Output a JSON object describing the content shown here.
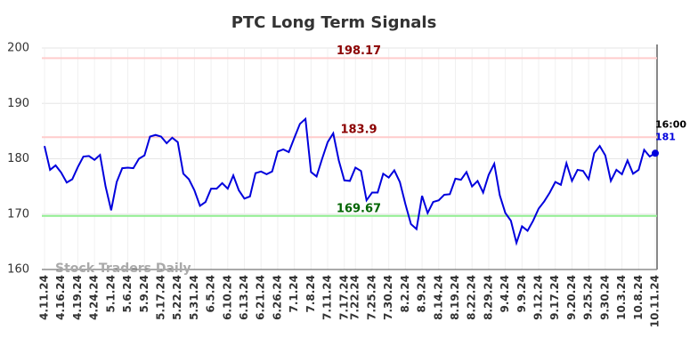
{
  "chart_data": {
    "type": "line",
    "title": "PTC Long Term Signals",
    "categories": [
      "4.11.24",
      null,
      null,
      "4.16.24",
      null,
      null,
      "4.19.24",
      null,
      null,
      "4.24.24",
      null,
      null,
      "5.1.24",
      null,
      null,
      "5.6.24",
      null,
      null,
      "5.9.24",
      null,
      null,
      "5.17.24",
      null,
      null,
      "5.22.24",
      null,
      null,
      "5.31.24",
      null,
      null,
      "6.5.24",
      null,
      null,
      "6.10.24",
      null,
      null,
      "6.13.24",
      null,
      null,
      "6.21.24",
      null,
      null,
      "6.26.24",
      null,
      null,
      "7.1.24",
      null,
      null,
      "7.8.24",
      null,
      null,
      "7.11.24",
      null,
      null,
      "7.17.24",
      null,
      "7.22.24",
      null,
      null,
      "7.25.24",
      null,
      null,
      "7.30.24",
      null,
      null,
      "8.2.24",
      null,
      null,
      "8.9.24",
      null,
      null,
      "8.14.24",
      null,
      null,
      "8.19.24",
      null,
      null,
      "8.22.24",
      null,
      null,
      "8.29.24",
      null,
      null,
      "9.4.24",
      null,
      null,
      "9.9.24",
      null,
      null,
      "9.12.24",
      null,
      null,
      "9.17.24",
      null,
      null,
      "9.20.24",
      null,
      null,
      "9.25.24",
      null,
      null,
      "9.30.24",
      null,
      null,
      "10.3.24",
      null,
      null,
      "10.8.24",
      null,
      null,
      "10.11.24"
    ],
    "series": [
      {
        "name": "PTC",
        "color": "#0000dd",
        "values": [
          182.3,
          178,
          178.8,
          177.5,
          175.7,
          176.3,
          178.5,
          180.4,
          180.5,
          179.8,
          180.7,
          175,
          170.7,
          175.8,
          178.3,
          178.4,
          178.3,
          180,
          180.6,
          184,
          184.3,
          184,
          182.8,
          183.8,
          183,
          177.3,
          176.3,
          174.3,
          171.5,
          172.2,
          174.6,
          174.6,
          175.6,
          174.6,
          177,
          174.3,
          172.8,
          173.2,
          177.4,
          177.7,
          177.2,
          177.7,
          181.3,
          181.7,
          181.2,
          183.8,
          186.3,
          187.2,
          177.6,
          176.8,
          180,
          183,
          184.6,
          179.7,
          176.1,
          176,
          178.4,
          177.8,
          172.5,
          173.9,
          173.9,
          177.3,
          176.6,
          177.9,
          175.8,
          171.8,
          168.2,
          167.3,
          173.3,
          170.2,
          172.2,
          172.5,
          173.5,
          173.6,
          176.4,
          176.2,
          177.6,
          175,
          176,
          173.9,
          177.1,
          179.1,
          173.4,
          170.2,
          168.8,
          164.8,
          167.8,
          167,
          168.8,
          171,
          172.3,
          173.9,
          175.8,
          175.3,
          179.2,
          176,
          178,
          177.8,
          176.3,
          181,
          182.3,
          180.6,
          176,
          178,
          177.2,
          179.7,
          177.3,
          178,
          181.6,
          180.4,
          181
        ]
      }
    ],
    "last_time_label": "16:00",
    "reference_lines": [
      {
        "value": 198.17,
        "color": "#ffcccc",
        "label_color": "#8b0000"
      },
      {
        "value": 183.9,
        "color": "#ffcccc",
        "label_color": "#8b0000"
      },
      {
        "value": 169.67,
        "color": "#90ee90",
        "label_color": "#006400"
      }
    ],
    "ylim": [
      160,
      200
    ],
    "yticks": [
      160,
      170,
      180,
      190,
      200
    ],
    "grid": true,
    "watermark": "Stock Traders Daily"
  }
}
